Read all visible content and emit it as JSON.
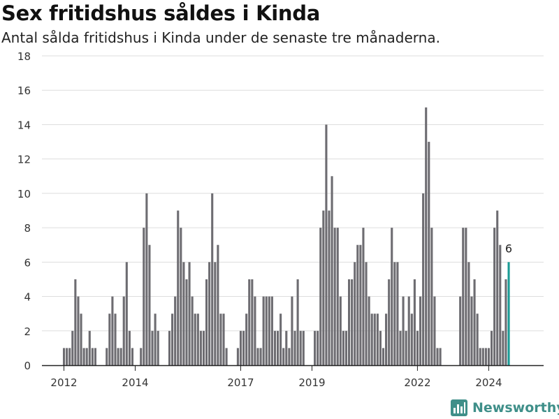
{
  "header": {
    "title": "Sex fritidshus såldes i Kinda",
    "subtitle": "Antal sålda fritidshus i Kinda under de senaste tre månaderna."
  },
  "brand": {
    "name": "Newsworthy",
    "icon": "newsworthy-logo-icon",
    "color": "#3f8f89"
  },
  "colors": {
    "bar": "#6d6c71",
    "highlight": "#1a9b95",
    "grid": "#dddddd",
    "axis": "#222222"
  },
  "chart_data": {
    "type": "bar",
    "title": "Sex fritidshus såldes i Kinda",
    "subtitle": "Antal sålda fritidshus i Kinda under de senaste tre månaderna.",
    "xlabel": "",
    "ylabel": "",
    "ylim": [
      0,
      18
    ],
    "yticks": [
      0,
      2,
      4,
      6,
      8,
      10,
      12,
      14,
      16,
      18
    ],
    "xticks": [
      "2012",
      "2014",
      "2017",
      "2019",
      "2022",
      "2024"
    ],
    "grid": true,
    "legend": "none",
    "x_start": "2012-01",
    "x_end": "2024-12",
    "values": [
      1,
      1,
      1,
      2,
      5,
      4,
      3,
      1,
      1,
      2,
      1,
      1,
      0,
      0,
      0,
      1,
      3,
      4,
      3,
      1,
      1,
      4,
      6,
      2,
      1,
      0,
      0,
      1,
      8,
      10,
      7,
      2,
      3,
      2,
      0,
      0,
      0,
      2,
      3,
      4,
      9,
      8,
      6,
      5,
      6,
      4,
      3,
      3,
      2,
      2,
      5,
      6,
      10,
      6,
      7,
      3,
      3,
      1,
      0,
      0,
      0,
      1,
      2,
      2,
      3,
      5,
      5,
      4,
      1,
      1,
      4,
      4,
      4,
      4,
      2,
      2,
      3,
      1,
      2,
      1,
      4,
      2,
      5,
      2,
      2,
      0,
      0,
      0,
      2,
      2,
      8,
      9,
      14,
      9,
      11,
      8,
      8,
      4,
      2,
      2,
      5,
      5,
      6,
      7,
      7,
      8,
      6,
      4,
      3,
      3,
      3,
      2,
      1,
      3,
      5,
      8,
      6,
      6,
      2,
      4,
      2,
      4,
      3,
      5,
      2,
      4,
      10,
      15,
      13,
      8,
      4,
      1,
      1,
      0,
      0,
      0,
      0,
      0,
      0,
      4,
      8,
      8,
      6,
      4,
      5,
      3,
      1,
      1,
      1,
      1,
      2,
      8,
      9,
      7,
      2,
      5,
      6
    ],
    "highlight_label": "6",
    "highlight_value": 6
  }
}
